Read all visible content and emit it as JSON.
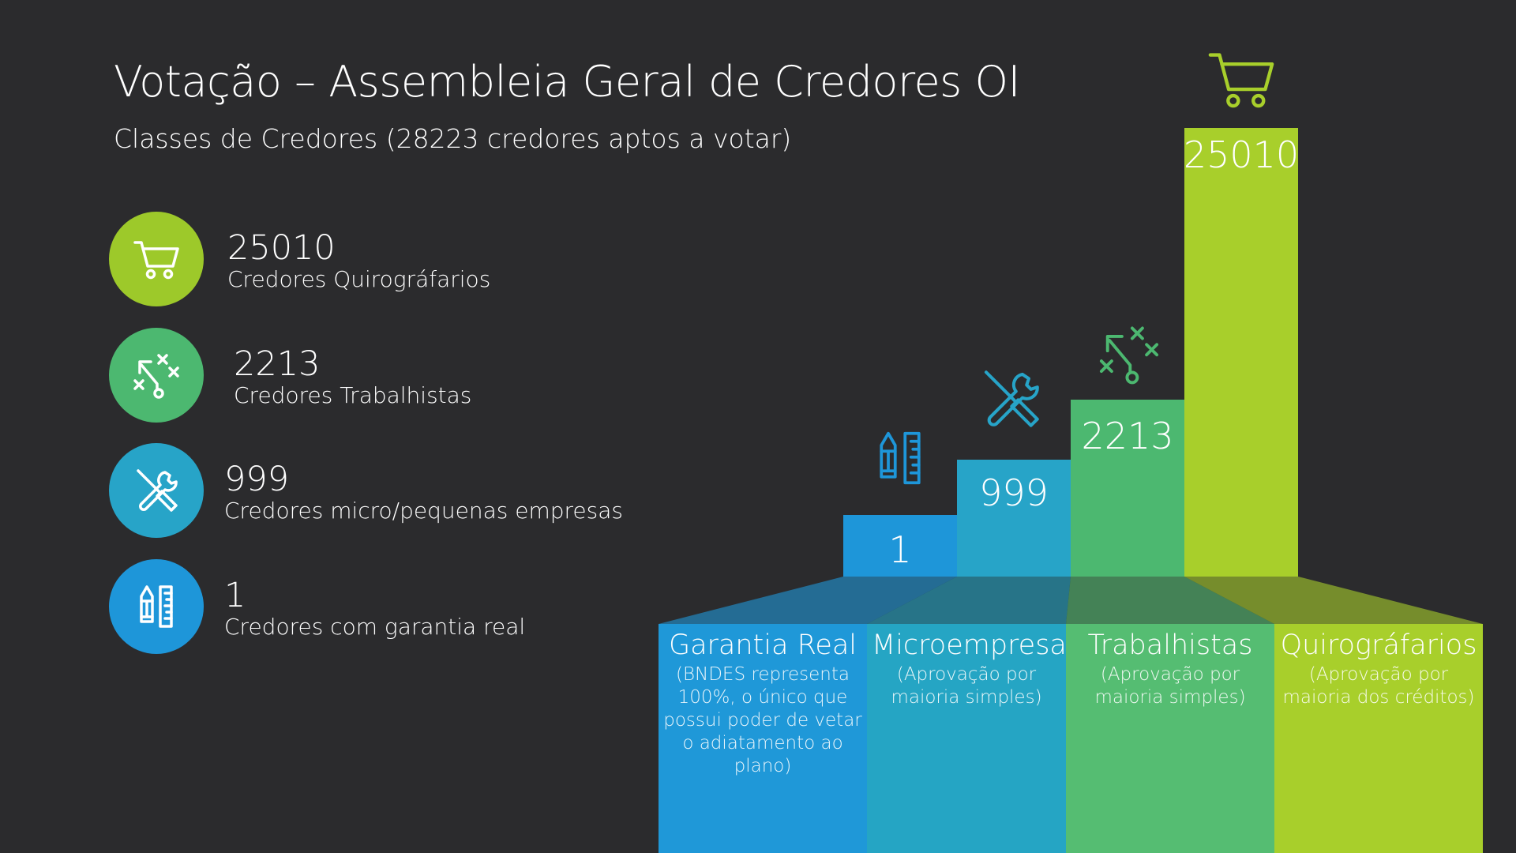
{
  "header": {
    "title": "Votação – Assembleia Geral de Credores OI",
    "subtitle": "Classes de Credores (28223 credores aptos a votar)"
  },
  "legend": [
    {
      "value": "25010",
      "label": "Credores Quirográfarios",
      "color": "#9dc92a",
      "icon": "shopping-cart-icon"
    },
    {
      "value": "2213",
      "label": "Credores Trabalhistas",
      "color": "#4cb870",
      "icon": "strategy-play-icon"
    },
    {
      "value": "999",
      "label": "Credores micro/pequenas empresas",
      "color": "#27a4c8",
      "icon": "tools-icon"
    },
    {
      "value": "1",
      "label": "Credores com garantia real",
      "color": "#1e96d9",
      "icon": "pencil-ruler-icon"
    }
  ],
  "chart_data": {
    "type": "bar",
    "categories": [
      "Garantia Real",
      "Microempresa",
      "Trabalhistas",
      "Quirográfarios"
    ],
    "category_notes": [
      "(BNDES representa 100%, o único que possui poder de vetar o adiatamento ao plano)",
      "(Aprovação por maioria simples)",
      "(Aprovação por maioria simples)",
      "(Aprovação por maioria dos créditos)"
    ],
    "values": [
      1,
      999,
      2213,
      25010
    ],
    "value_labels": [
      "1",
      "999",
      "2213",
      "25010"
    ],
    "icons": [
      "pencil-ruler-icon",
      "tools-icon",
      "strategy-play-icon",
      "shopping-cart-icon"
    ],
    "scale": "non-linear (stepped)",
    "colors": {
      "bars": [
        "#1e96d9",
        "#27a4c8",
        "#4cb870",
        "#a8cf2b"
      ],
      "bases": [
        "#1f98d8",
        "#25a5c4",
        "#55bd72",
        "#a8cf2b"
      ],
      "icon_colors": [
        "#1e96d9",
        "#27a4c8",
        "#4cb870",
        "#a8cf2b"
      ]
    }
  }
}
